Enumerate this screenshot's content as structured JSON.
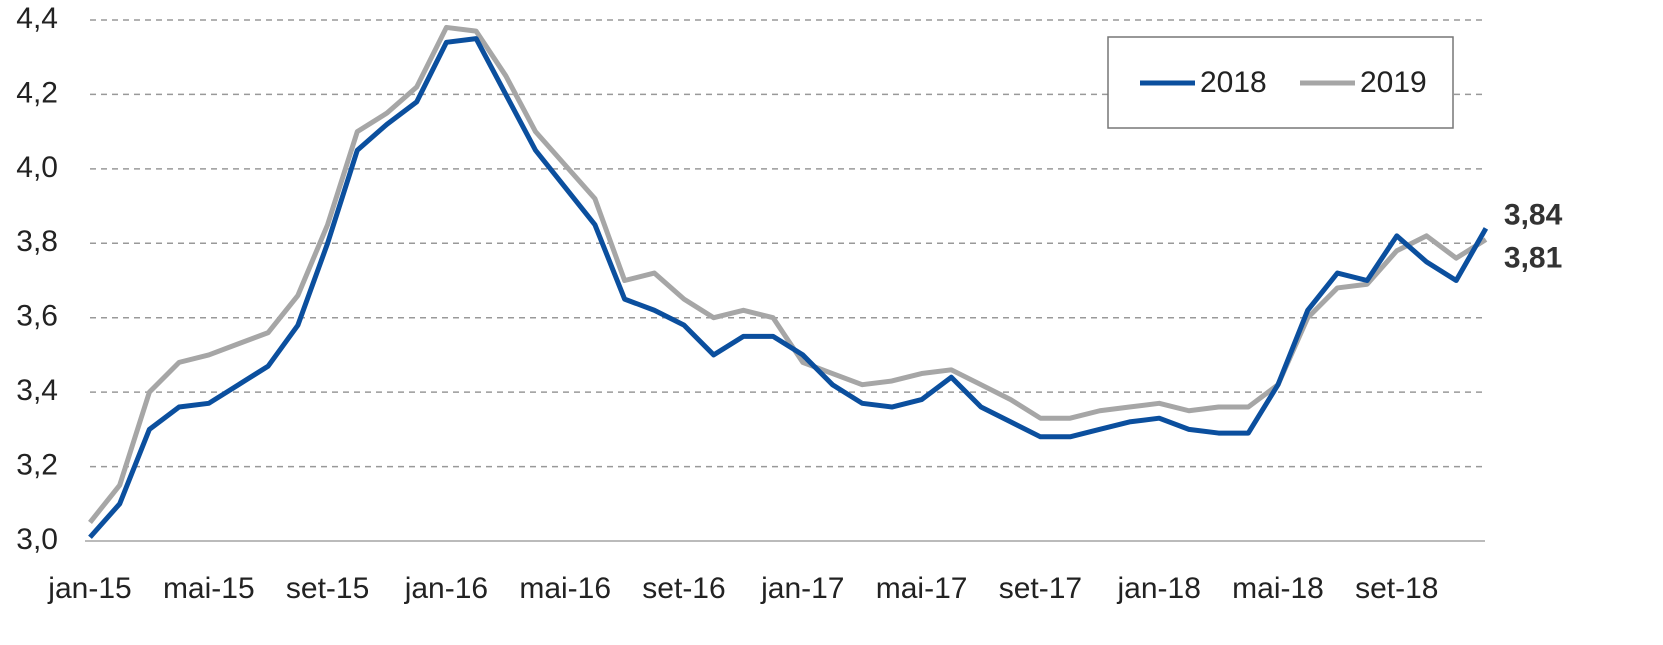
{
  "chart_data": {
    "type": "line",
    "categories": [
      "jan-15",
      null,
      null,
      null,
      "mai-15",
      null,
      null,
      null,
      "set-15",
      null,
      null,
      null,
      "jan-16",
      null,
      null,
      null,
      "mai-16",
      null,
      null,
      null,
      "set-16",
      null,
      null,
      null,
      "jan-17",
      null,
      null,
      null,
      "mai-17",
      null,
      null,
      null,
      "set-17",
      null,
      null,
      null,
      "jan-18",
      null,
      null,
      null,
      "mai-18",
      null,
      null,
      null,
      "set-18",
      null,
      null,
      null
    ],
    "series": [
      {
        "name": "2018",
        "color": "#0b4f9e",
        "values": [
          3.01,
          3.1,
          3.3,
          3.36,
          3.37,
          3.42,
          3.47,
          3.58,
          3.8,
          4.05,
          4.12,
          4.18,
          4.34,
          4.35,
          4.2,
          4.05,
          3.95,
          3.85,
          3.65,
          3.62,
          3.58,
          3.5,
          3.55,
          3.55,
          3.5,
          3.42,
          3.37,
          3.36,
          3.38,
          3.44,
          3.36,
          3.32,
          3.28,
          3.28,
          3.3,
          3.32,
          3.33,
          3.3,
          3.29,
          3.29,
          3.42,
          3.62,
          3.72,
          3.7,
          3.82,
          3.75,
          3.7,
          3.84
        ],
        "value_labels": [
          null,
          null,
          null,
          null,
          null,
          null,
          null,
          null,
          null,
          null,
          null,
          null,
          null,
          null,
          null,
          null,
          null,
          null,
          null,
          null,
          null,
          null,
          null,
          null,
          null,
          null,
          null,
          null,
          null,
          null,
          null,
          null,
          null,
          null,
          null,
          null,
          null,
          null,
          null,
          null,
          null,
          null,
          null,
          null,
          null,
          null,
          null,
          "3,84"
        ]
      },
      {
        "name": "2019",
        "color": "#a6a6a6",
        "values": [
          3.05,
          3.15,
          3.4,
          3.48,
          3.5,
          3.53,
          3.56,
          3.66,
          3.85,
          4.1,
          4.15,
          4.22,
          4.38,
          4.37,
          4.25,
          4.1,
          4.01,
          3.92,
          3.7,
          3.72,
          3.65,
          3.6,
          3.62,
          3.6,
          3.48,
          3.45,
          3.42,
          3.43,
          3.45,
          3.46,
          3.42,
          3.38,
          3.33,
          3.33,
          3.35,
          3.36,
          3.37,
          3.35,
          3.36,
          3.36,
          3.42,
          3.6,
          3.68,
          3.69,
          3.78,
          3.82,
          3.76,
          3.81
        ],
        "value_labels": [
          null,
          null,
          null,
          null,
          null,
          null,
          null,
          null,
          null,
          null,
          null,
          null,
          null,
          null,
          null,
          null,
          null,
          null,
          null,
          null,
          null,
          null,
          null,
          null,
          null,
          null,
          null,
          null,
          null,
          null,
          null,
          null,
          null,
          null,
          null,
          null,
          null,
          null,
          null,
          null,
          null,
          null,
          null,
          null,
          null,
          null,
          null,
          "3,81"
        ]
      }
    ],
    "ylim": [
      3.0,
      4.4
    ],
    "yticks": [
      {
        "value": 3.0,
        "label": "3,0"
      },
      {
        "value": 3.2,
        "label": "3,2"
      },
      {
        "value": 3.4,
        "label": "3,4"
      },
      {
        "value": 3.6,
        "label": "3,6"
      },
      {
        "value": 3.8,
        "label": "3,8"
      },
      {
        "value": 4.0,
        "label": "4,0"
      },
      {
        "value": 4.2,
        "label": "4,2"
      },
      {
        "value": 4.4,
        "label": "4,4"
      }
    ],
    "grid": true,
    "legend": "upper right"
  }
}
